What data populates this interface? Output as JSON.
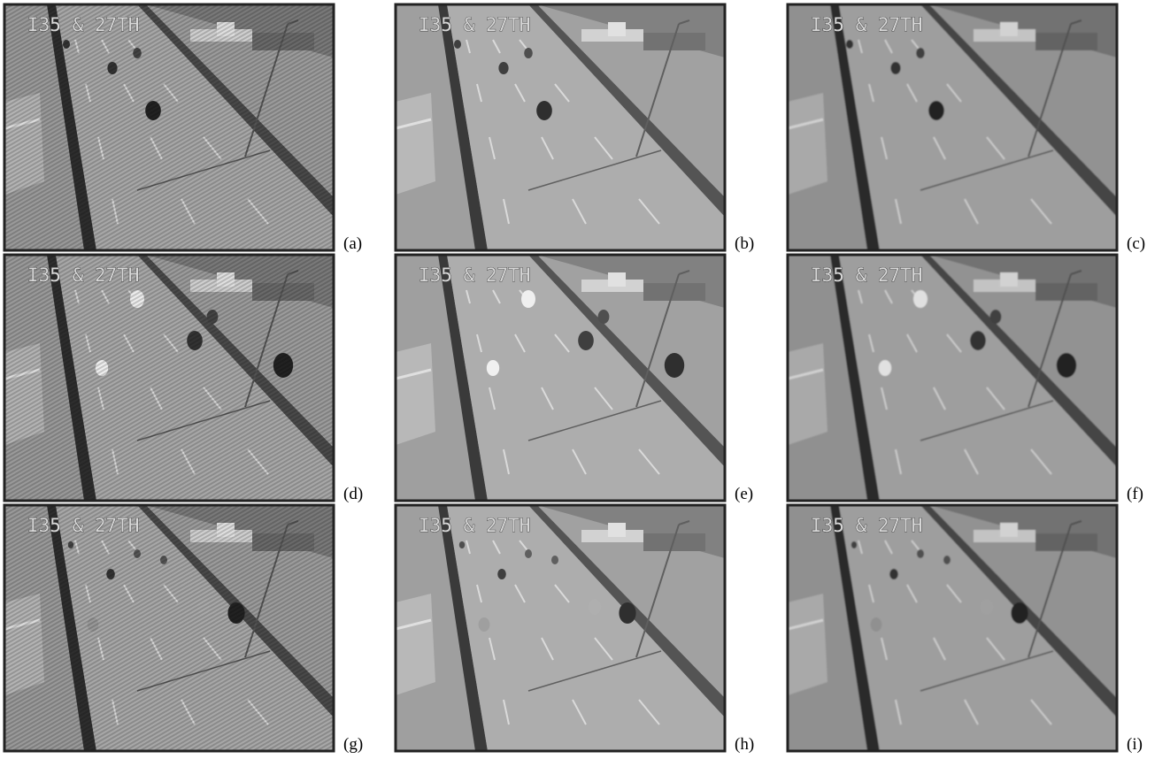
{
  "panels": [
    {
      "label": "(a)",
      "overlay": "I35 & 27TH"
    },
    {
      "label": "(b)",
      "overlay": "I35 & 27TH"
    },
    {
      "label": "(c)",
      "overlay": "I35 & 27TH"
    },
    {
      "label": "(d)",
      "overlay": "I35 & 27TH"
    },
    {
      "label": "(e)",
      "overlay": "I35 & 27TH"
    },
    {
      "label": "(f)",
      "overlay": "I35 & 27TH"
    },
    {
      "label": "(g)",
      "overlay": "I35 & 27TH"
    },
    {
      "label": "(h)",
      "overlay": "I35 & 27TH"
    },
    {
      "label": "(i)",
      "overlay": "I35 & 27TH"
    }
  ]
}
